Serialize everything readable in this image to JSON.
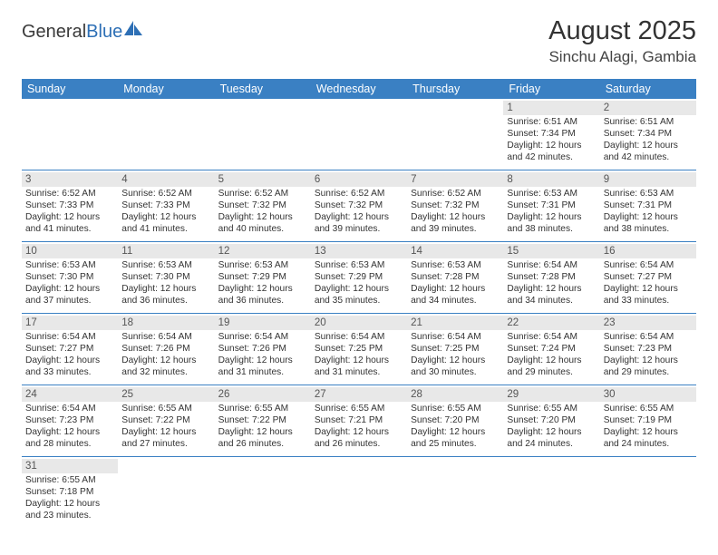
{
  "logo": {
    "text1": "General",
    "text2": "Blue"
  },
  "title": "August 2025",
  "location": "Sinchu Alagi, Gambia",
  "colors": {
    "header_bg": "#3a80c3",
    "header_fg": "#ffffff",
    "daynum_bg": "#e8e8e8",
    "text": "#333333",
    "row_border": "#3a80c3"
  },
  "weekdays": [
    "Sunday",
    "Monday",
    "Tuesday",
    "Wednesday",
    "Thursday",
    "Friday",
    "Saturday"
  ],
  "weeks": [
    [
      null,
      null,
      null,
      null,
      null,
      {
        "n": "1",
        "sunrise": "6:51 AM",
        "sunset": "7:34 PM",
        "dh": "12",
        "dm": "42"
      },
      {
        "n": "2",
        "sunrise": "6:51 AM",
        "sunset": "7:34 PM",
        "dh": "12",
        "dm": "42"
      }
    ],
    [
      {
        "n": "3",
        "sunrise": "6:52 AM",
        "sunset": "7:33 PM",
        "dh": "12",
        "dm": "41"
      },
      {
        "n": "4",
        "sunrise": "6:52 AM",
        "sunset": "7:33 PM",
        "dh": "12",
        "dm": "41"
      },
      {
        "n": "5",
        "sunrise": "6:52 AM",
        "sunset": "7:32 PM",
        "dh": "12",
        "dm": "40"
      },
      {
        "n": "6",
        "sunrise": "6:52 AM",
        "sunset": "7:32 PM",
        "dh": "12",
        "dm": "39"
      },
      {
        "n": "7",
        "sunrise": "6:52 AM",
        "sunset": "7:32 PM",
        "dh": "12",
        "dm": "39"
      },
      {
        "n": "8",
        "sunrise": "6:53 AM",
        "sunset": "7:31 PM",
        "dh": "12",
        "dm": "38"
      },
      {
        "n": "9",
        "sunrise": "6:53 AM",
        "sunset": "7:31 PM",
        "dh": "12",
        "dm": "38"
      }
    ],
    [
      {
        "n": "10",
        "sunrise": "6:53 AM",
        "sunset": "7:30 PM",
        "dh": "12",
        "dm": "37"
      },
      {
        "n": "11",
        "sunrise": "6:53 AM",
        "sunset": "7:30 PM",
        "dh": "12",
        "dm": "36"
      },
      {
        "n": "12",
        "sunrise": "6:53 AM",
        "sunset": "7:29 PM",
        "dh": "12",
        "dm": "36"
      },
      {
        "n": "13",
        "sunrise": "6:53 AM",
        "sunset": "7:29 PM",
        "dh": "12",
        "dm": "35"
      },
      {
        "n": "14",
        "sunrise": "6:53 AM",
        "sunset": "7:28 PM",
        "dh": "12",
        "dm": "34"
      },
      {
        "n": "15",
        "sunrise": "6:54 AM",
        "sunset": "7:28 PM",
        "dh": "12",
        "dm": "34"
      },
      {
        "n": "16",
        "sunrise": "6:54 AM",
        "sunset": "7:27 PM",
        "dh": "12",
        "dm": "33"
      }
    ],
    [
      {
        "n": "17",
        "sunrise": "6:54 AM",
        "sunset": "7:27 PM",
        "dh": "12",
        "dm": "33"
      },
      {
        "n": "18",
        "sunrise": "6:54 AM",
        "sunset": "7:26 PM",
        "dh": "12",
        "dm": "32"
      },
      {
        "n": "19",
        "sunrise": "6:54 AM",
        "sunset": "7:26 PM",
        "dh": "12",
        "dm": "31"
      },
      {
        "n": "20",
        "sunrise": "6:54 AM",
        "sunset": "7:25 PM",
        "dh": "12",
        "dm": "31"
      },
      {
        "n": "21",
        "sunrise": "6:54 AM",
        "sunset": "7:25 PM",
        "dh": "12",
        "dm": "30"
      },
      {
        "n": "22",
        "sunrise": "6:54 AM",
        "sunset": "7:24 PM",
        "dh": "12",
        "dm": "29"
      },
      {
        "n": "23",
        "sunrise": "6:54 AM",
        "sunset": "7:23 PM",
        "dh": "12",
        "dm": "29"
      }
    ],
    [
      {
        "n": "24",
        "sunrise": "6:54 AM",
        "sunset": "7:23 PM",
        "dh": "12",
        "dm": "28"
      },
      {
        "n": "25",
        "sunrise": "6:55 AM",
        "sunset": "7:22 PM",
        "dh": "12",
        "dm": "27"
      },
      {
        "n": "26",
        "sunrise": "6:55 AM",
        "sunset": "7:22 PM",
        "dh": "12",
        "dm": "26"
      },
      {
        "n": "27",
        "sunrise": "6:55 AM",
        "sunset": "7:21 PM",
        "dh": "12",
        "dm": "26"
      },
      {
        "n": "28",
        "sunrise": "6:55 AM",
        "sunset": "7:20 PM",
        "dh": "12",
        "dm": "25"
      },
      {
        "n": "29",
        "sunrise": "6:55 AM",
        "sunset": "7:20 PM",
        "dh": "12",
        "dm": "24"
      },
      {
        "n": "30",
        "sunrise": "6:55 AM",
        "sunset": "7:19 PM",
        "dh": "12",
        "dm": "24"
      }
    ],
    [
      {
        "n": "31",
        "sunrise": "6:55 AM",
        "sunset": "7:18 PM",
        "dh": "12",
        "dm": "23"
      },
      null,
      null,
      null,
      null,
      null,
      null
    ]
  ]
}
